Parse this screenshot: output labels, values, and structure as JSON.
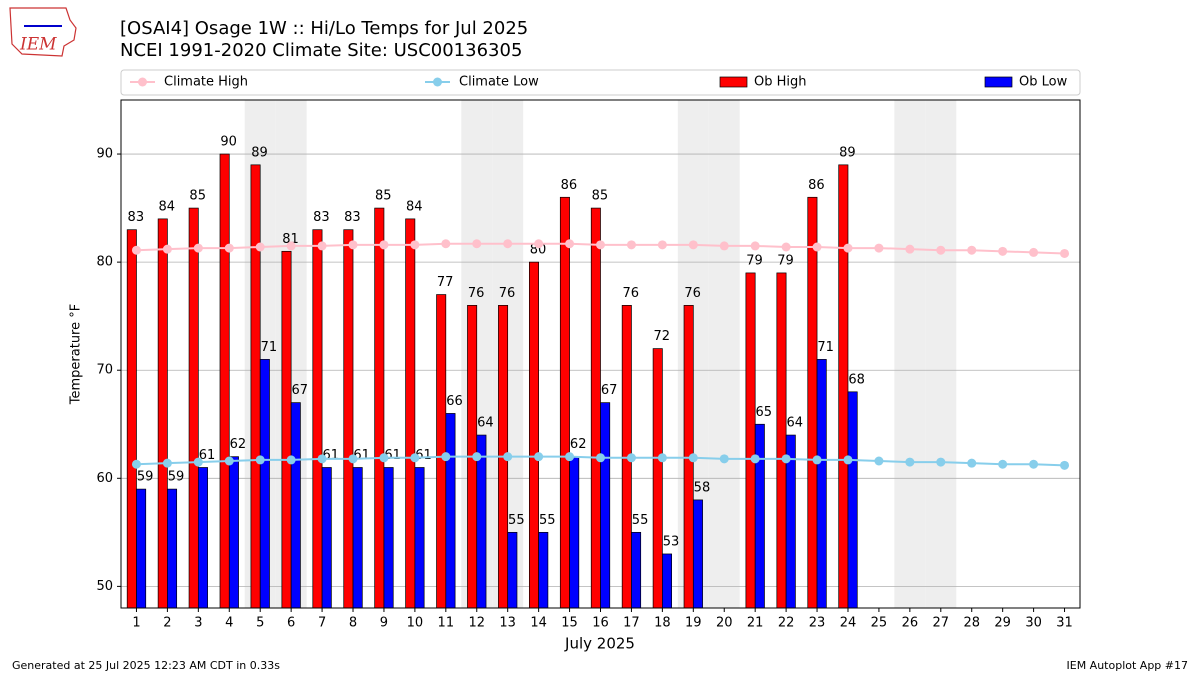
{
  "chart_data": {
    "type": "bar",
    "title": "[OSAI4] Osage 1W :: Hi/Lo Temps for Jul 2025",
    "subtitle": "NCEI 1991-2020 Climate Site: USC00136305",
    "logo_text": "IEM",
    "ylabel": "Temperature °F",
    "xlabel": "July 2025",
    "footer_left": "Generated at 25 Jul 2025 12:23 AM CDT in 0.33s",
    "footer_right": "IEM Autoplot App #17",
    "x": [
      1,
      2,
      3,
      4,
      5,
      6,
      7,
      8,
      9,
      10,
      11,
      12,
      13,
      14,
      15,
      16,
      17,
      18,
      19,
      20,
      21,
      22,
      23,
      24,
      25,
      26,
      27,
      28,
      29,
      30,
      31
    ],
    "xlim": [
      0.5,
      31.5
    ],
    "xticks": [
      1,
      2,
      3,
      4,
      5,
      6,
      7,
      8,
      9,
      10,
      11,
      12,
      13,
      14,
      15,
      16,
      17,
      18,
      19,
      20,
      21,
      22,
      23,
      24,
      25,
      26,
      27,
      28,
      29,
      30,
      31
    ],
    "ylim": [
      48,
      95
    ],
    "yticks": [
      50,
      60,
      70,
      80,
      90
    ],
    "grid": true,
    "shaded": [
      5,
      6,
      12,
      13,
      19,
      20,
      26,
      27
    ],
    "series": [
      {
        "name": "Climate High",
        "type": "line",
        "color": "#ffc0cb",
        "values": [
          81.1,
          81.2,
          81.3,
          81.3,
          81.4,
          81.5,
          81.5,
          81.6,
          81.6,
          81.6,
          81.7,
          81.7,
          81.7,
          81.7,
          81.7,
          81.6,
          81.6,
          81.6,
          81.6,
          81.5,
          81.5,
          81.4,
          81.4,
          81.3,
          81.3,
          81.2,
          81.1,
          81.1,
          81.0,
          80.9,
          80.8
        ]
      },
      {
        "name": "Climate Low",
        "type": "line",
        "color": "#87ceeb",
        "values": [
          61.3,
          61.4,
          61.5,
          61.6,
          61.7,
          61.7,
          61.8,
          61.8,
          61.9,
          61.9,
          62.0,
          62.0,
          62.0,
          62.0,
          62.0,
          61.9,
          61.9,
          61.9,
          61.9,
          61.8,
          61.8,
          61.8,
          61.7,
          61.7,
          61.6,
          61.5,
          61.5,
          61.4,
          61.3,
          61.3,
          61.2
        ]
      },
      {
        "name": "Ob High",
        "type": "bar",
        "color": "#ff0000",
        "values": [
          83,
          84,
          85,
          90,
          89,
          81,
          83,
          83,
          85,
          84,
          77,
          76,
          76,
          80,
          86,
          85,
          76,
          72,
          76,
          null,
          79,
          79,
          86,
          89,
          null,
          null,
          null,
          null,
          null,
          null,
          null
        ]
      },
      {
        "name": "Ob Low",
        "type": "bar",
        "color": "#0000ff",
        "values": [
          59,
          59,
          61,
          62,
          71,
          67,
          61,
          61,
          61,
          61,
          66,
          64,
          55,
          55,
          62,
          67,
          55,
          53,
          58,
          null,
          65,
          64,
          71,
          68,
          null,
          null,
          null,
          null,
          null,
          null,
          null
        ]
      }
    ]
  }
}
